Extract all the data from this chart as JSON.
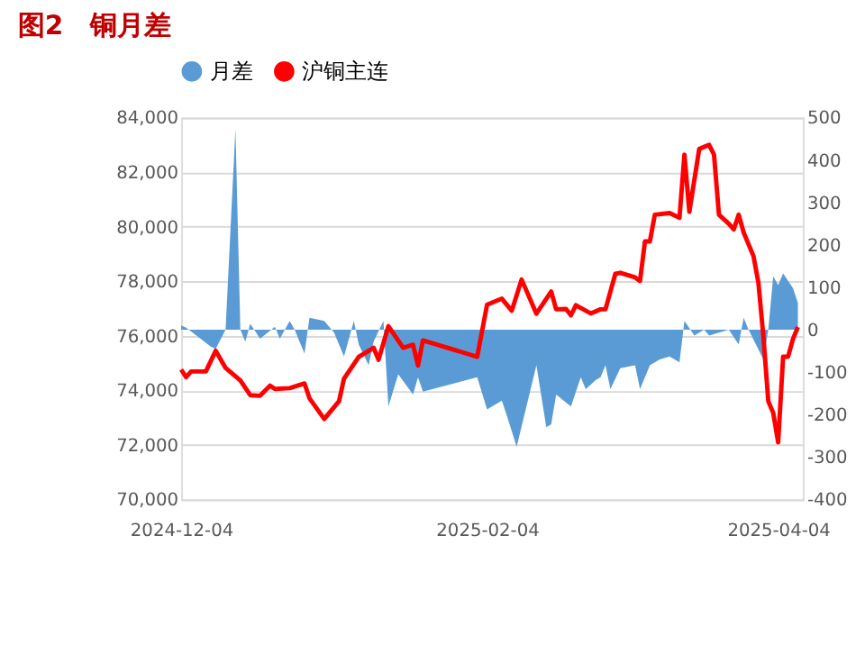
{
  "chart_data": {
    "type": "line",
    "title": "图2　铜月差",
    "x": [
      "2024-12-04",
      "2024-12-05",
      "2024-12-06",
      "2024-12-09",
      "2024-12-11",
      "2024-12-13",
      "2024-12-16",
      "2024-12-18",
      "2024-12-20",
      "2024-12-22",
      "2024-12-23",
      "2024-12-26",
      "2024-12-29",
      "2024-12-30",
      "2025-01-02",
      "2025-01-05",
      "2025-01-06",
      "2025-01-09",
      "2025-01-12",
      "2025-01-13",
      "2025-01-15",
      "2025-01-18",
      "2025-01-20",
      "2025-01-21",
      "2025-01-22",
      "2025-02-02",
      "2025-02-04",
      "2025-02-07",
      "2025-02-09",
      "2025-02-11",
      "2025-02-14",
      "2025-02-17",
      "2025-02-18",
      "2025-02-20",
      "2025-02-21",
      "2025-02-22",
      "2025-02-25",
      "2025-02-27",
      "2025-02-28",
      "2025-03-02",
      "2025-03-03",
      "2025-03-06",
      "2025-03-07",
      "2025-03-08",
      "2025-03-09",
      "2025-03-10",
      "2025-03-13",
      "2025-03-15",
      "2025-03-16",
      "2025-03-17",
      "2025-03-19",
      "2025-03-21",
      "2025-03-22",
      "2025-03-23",
      "2025-03-25",
      "2025-03-26",
      "2025-03-27",
      "2025-03-28",
      "2025-03-30",
      "2025-03-31",
      "2025-04-01",
      "2025-04-02",
      "2025-04-03",
      "2025-04-04",
      "2025-04-05",
      "2025-04-06",
      "2025-04-07",
      "2025-04-08"
    ],
    "series": [
      {
        "name": "月差",
        "type": "area",
        "axis": "y2",
        "color": "#5b9bd5",
        "x": [
          "2024-12-04",
          "2024-12-05",
          "2024-12-10",
          "2024-12-11",
          "2024-12-13",
          "2024-12-15",
          "2024-12-16",
          "2024-12-17",
          "2024-12-18",
          "2024-12-20",
          "2024-12-23",
          "2024-12-24",
          "2024-12-26",
          "2024-12-27",
          "2024-12-29",
          "2024-12-30",
          "2025-01-02",
          "2025-01-04",
          "2025-01-06",
          "2025-01-08",
          "2025-01-09",
          "2025-01-11",
          "2025-01-12",
          "2025-01-14",
          "2025-01-15",
          "2025-01-17",
          "2025-01-20",
          "2025-01-21",
          "2025-01-22",
          "2025-02-02",
          "2025-02-04",
          "2025-02-07",
          "2025-02-08",
          "2025-02-10",
          "2025-02-14",
          "2025-02-16",
          "2025-02-17",
          "2025-02-18",
          "2025-02-21",
          "2025-02-23",
          "2025-02-24",
          "2025-02-26",
          "2025-02-27",
          "2025-02-28",
          "2025-03-01",
          "2025-03-03",
          "2025-03-06",
          "2025-03-07",
          "2025-03-09",
          "2025-03-11",
          "2025-03-13",
          "2025-03-15",
          "2025-03-16",
          "2025-03-18",
          "2025-03-20",
          "2025-03-21",
          "2025-03-23",
          "2025-03-25",
          "2025-03-27",
          "2025-03-28",
          "2025-03-29",
          "2025-04-01",
          "2025-04-02",
          "2025-04-03",
          "2025-04-04",
          "2025-04-05",
          "2025-04-07",
          "2025-04-08"
        ],
        "values": [
          10,
          5,
          -40,
          -45,
          0,
          474,
          0,
          -28,
          14,
          -21,
          7,
          -21,
          21,
          0,
          -56,
          28,
          21,
          -7,
          -63,
          21,
          -35,
          -84,
          -28,
          21,
          -181,
          -105,
          -153,
          -112,
          -146,
          -112,
          -188,
          -167,
          -202,
          -276,
          -84,
          -230,
          -223,
          -153,
          -181,
          -112,
          -140,
          -119,
          -112,
          -84,
          -140,
          -91,
          -84,
          -140,
          -84,
          -70,
          -63,
          -77,
          21,
          -14,
          0,
          -14,
          -7,
          0,
          -35,
          28,
          0,
          -70,
          0,
          126,
          105,
          133,
          98,
          63
        ]
      },
      {
        "name": "沪铜主连",
        "color": "#ff0000",
        "values": [
          74760,
          74480,
          74690,
          74690,
          75450,
          74820,
          74360,
          73820,
          73800,
          74170,
          74050,
          74080,
          74250,
          73710,
          72950,
          73600,
          74430,
          75230,
          75560,
          75120,
          76350,
          75560,
          75670,
          74910,
          75830,
          75230,
          77140,
          77360,
          76920,
          78060,
          76810,
          77620,
          76970,
          76980,
          76750,
          77120,
          76820,
          76970,
          76970,
          78270,
          78310,
          78140,
          78010,
          79460,
          79460,
          80440,
          80500,
          80330,
          82640,
          80550,
          82850,
          83000,
          82640,
          80440,
          80110,
          79900,
          80440,
          79790,
          78920,
          77940,
          75990,
          73600,
          73170,
          72090,
          75230,
          75230,
          75880,
          76320
        ]
      }
    ],
    "xlim": [
      "2024-12-04",
      "2025-04-09"
    ],
    "xticks": [
      "2024-12-04",
      "2025-02-04",
      "2025-04-04"
    ],
    "ylim": [
      70000,
      84000
    ],
    "yticks": [
      {
        "value": 70000,
        "label": "70,000"
      },
      {
        "value": 72000,
        "label": "72,000"
      },
      {
        "value": 74000,
        "label": "74,000"
      },
      {
        "value": 76000,
        "label": "76,000"
      },
      {
        "value": 78000,
        "label": "78,000"
      },
      {
        "value": 80000,
        "label": "80,000"
      },
      {
        "value": 82000,
        "label": "82,000"
      },
      {
        "value": 84000,
        "label": "84,000"
      }
    ],
    "y2lim": [
      -400,
      500
    ],
    "y2ticks": [
      -400,
      -300,
      -200,
      -100,
      0,
      100,
      200,
      300,
      400,
      500
    ],
    "grid": "y",
    "legend": "top"
  }
}
